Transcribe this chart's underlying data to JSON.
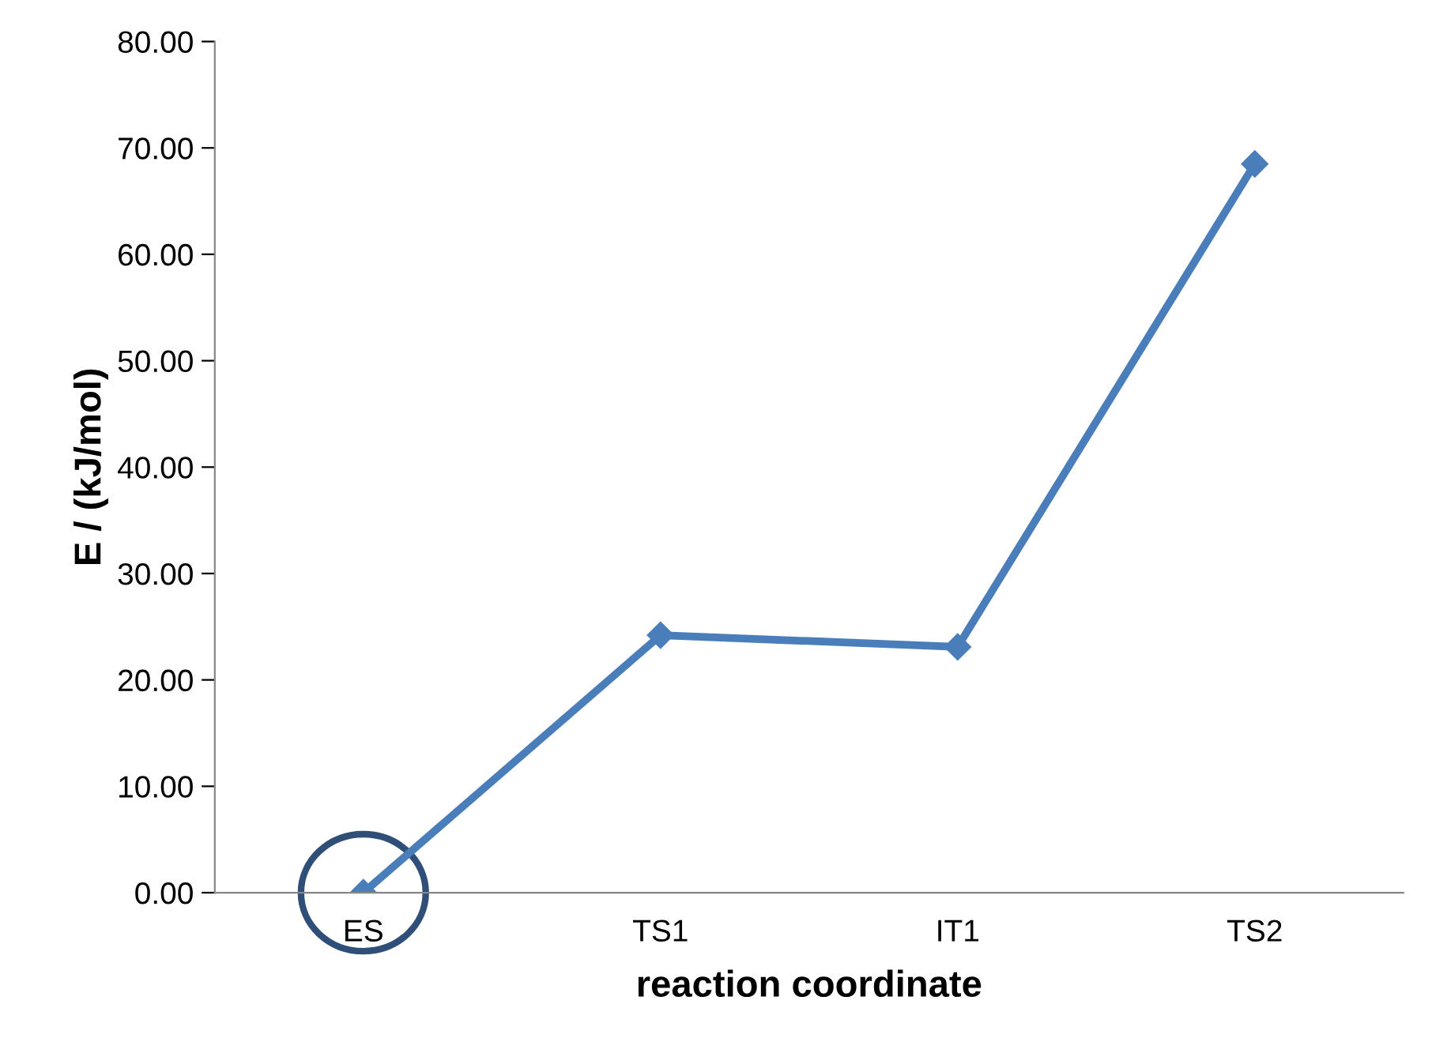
{
  "chart_data": {
    "type": "line",
    "xlabel": "reaction coordinate",
    "ylabel": "E / (kJ/mol)",
    "categories": [
      "ES",
      "TS1",
      "IT1",
      "TS2"
    ],
    "series": [
      {
        "color": "#4a7ebb",
        "values": [
          0.0,
          24.2,
          23.1,
          68.5
        ]
      }
    ],
    "ylim": [
      0,
      80
    ],
    "yticks": [
      {
        "value": 0,
        "label": "0.00"
      },
      {
        "value": 10,
        "label": "10.00"
      },
      {
        "value": 20,
        "label": "20.00"
      },
      {
        "value": 30,
        "label": "30.00"
      },
      {
        "value": 40,
        "label": "40.00"
      },
      {
        "value": 50,
        "label": "50.00"
      },
      {
        "value": 60,
        "label": "60.00"
      },
      {
        "value": 70,
        "label": "70.00"
      },
      {
        "value": 80,
        "label": "80.00"
      }
    ],
    "marker": "diamond",
    "line_style": "solid",
    "grid": false,
    "legend": false
  }
}
